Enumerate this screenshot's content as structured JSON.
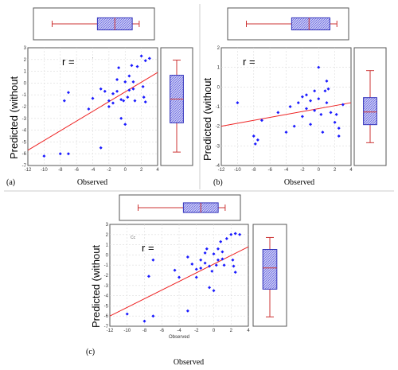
{
  "chart_data": [
    {
      "panel_label": "(a)",
      "type": "scatter",
      "title": "",
      "xlabel": "Observed",
      "ylabel": "Predicted (without",
      "r_label": "r =",
      "annotation": "ʼ",
      "xlim": [
        -12,
        4
      ],
      "ylim": [
        -7,
        3
      ],
      "x_ticks": [
        -12,
        -10,
        -8,
        -6,
        -4,
        -2,
        0,
        2,
        4
      ],
      "y_ticks": [
        3,
        2,
        1,
        0,
        -1,
        -2,
        -3,
        -4,
        -5,
        -6,
        -7
      ],
      "grid": true,
      "points": {
        "x": [
          -10,
          -8,
          -7.5,
          -7,
          -7,
          -4.5,
          -4,
          -3,
          -3,
          -2.5,
          -2,
          -2,
          -1.5,
          -1.5,
          -1,
          -1,
          -0.8,
          -0.5,
          -0.5,
          -0.2,
          0,
          0,
          0.3,
          0.5,
          0.5,
          0.8,
          1,
          1,
          1.2,
          1.5,
          2,
          2.2,
          2.3,
          2.5,
          2.5,
          3
        ],
        "y": [
          -6.2,
          -6,
          -1.5,
          -0.8,
          -6,
          -2.2,
          -1.3,
          -0.5,
          -5.5,
          -0.7,
          -1.5,
          -2,
          -0.9,
          -1.7,
          0.3,
          -0.7,
          1.3,
          -1.4,
          -3,
          -1.5,
          0.1,
          -3.5,
          -1.2,
          0.6,
          -0.6,
          1.5,
          0.1,
          -0.5,
          -1.5,
          1.4,
          2.3,
          -0.3,
          -1.2,
          1.9,
          -1.6,
          2.1
        ]
      },
      "fit_line": {
        "x": [
          -12,
          4
        ],
        "y": [
          -5.7,
          0.9
        ]
      },
      "boxplot_x": {
        "min": -10,
        "q1": -3.5,
        "median": -1,
        "q3": 1.5,
        "max": 2.5
      },
      "boxplot_y": {
        "min": -6.2,
        "q1": -3.5,
        "median": -1.3,
        "q3": 0.9,
        "max": 2.3
      }
    },
    {
      "panel_label": "(b)",
      "type": "scatter",
      "title": "",
      "xlabel": "Observed",
      "ylabel": "Predicted (without",
      "r_label": "r =",
      "xlim": [
        -12,
        4
      ],
      "ylim": [
        -4,
        2
      ],
      "x_ticks": [
        -12,
        -10,
        -8,
        -6,
        -4,
        -2,
        0,
        2,
        4
      ],
      "y_ticks": [
        2,
        1,
        0,
        -1,
        -2,
        -3,
        -4
      ],
      "grid": true,
      "points": {
        "x": [
          -10,
          -8,
          -7.8,
          -7.5,
          -7,
          -5,
          -4,
          -3.5,
          -3,
          -2.5,
          -2,
          -2,
          -1.5,
          -1.5,
          -1,
          -1,
          -0.5,
          -0.5,
          0,
          0,
          0.3,
          0.5,
          0.8,
          1,
          1,
          1.2,
          1.5,
          2,
          2.2,
          2.5,
          2.5,
          3
        ],
        "y": [
          -0.8,
          -2.5,
          -2.9,
          -2.7,
          -1.7,
          -1.3,
          -2.3,
          -1.0,
          -2.0,
          -0.8,
          -0.5,
          -1.5,
          -1.1,
          -0.4,
          -0.7,
          -1.9,
          -1.2,
          -0.2,
          1.0,
          -0.6,
          -1.4,
          -2.3,
          -0.2,
          0.3,
          -0.8,
          -0.1,
          -1.3,
          -1.8,
          -1.4,
          -2.1,
          -2.5,
          -0.9
        ]
      },
      "fit_line": {
        "x": [
          -12,
          4
        ],
        "y": [
          -2.0,
          -0.8
        ]
      },
      "boxplot_x": {
        "min": -10,
        "q1": -3.5,
        "median": -1,
        "q3": 2,
        "max": 3
      },
      "boxplot_y": {
        "min": -3.0,
        "q1": -2.0,
        "median": -1.3,
        "q3": -0.5,
        "max": 1.0
      }
    },
    {
      "panel_label": "(c)",
      "type": "scatter",
      "title": "",
      "xlabel": "Observed",
      "xlabel_small": "Observed",
      "ylabel": "Predicted (without",
      "r_label": "r =",
      "annotation": "Cc",
      "xlim": [
        -12,
        4
      ],
      "ylim": [
        -7,
        3
      ],
      "x_ticks": [
        -12,
        -10,
        -8,
        -6,
        -4,
        -2,
        0,
        2,
        4
      ],
      "y_ticks": [
        3,
        2,
        1,
        0,
        -1,
        -2,
        -3,
        -4,
        -5,
        -6,
        -7
      ],
      "grid": true,
      "points": {
        "x": [
          -10,
          -8,
          -7.5,
          -7,
          -7,
          -4.5,
          -4,
          -3,
          -3,
          -2.5,
          -2,
          -2,
          -1.5,
          -1.5,
          -1,
          -1,
          -0.8,
          -0.5,
          -0.5,
          -0.2,
          0,
          0,
          0.3,
          0.5,
          0.5,
          0.8,
          1,
          1,
          1.2,
          1.5,
          2,
          2.2,
          2.3,
          2.5,
          2.5,
          3
        ],
        "y": [
          -5.8,
          -6.5,
          -2.1,
          -0.5,
          -6.0,
          -1.5,
          -2.2,
          -0.2,
          -5.5,
          -0.9,
          -1.4,
          -2.2,
          -0.5,
          -1.3,
          0.2,
          -0.8,
          0.6,
          -1.1,
          -3.2,
          -1.6,
          0.1,
          -3.5,
          -1.0,
          0.6,
          -0.5,
          1.3,
          0.3,
          -0.4,
          -1.0,
          1.6,
          2.0,
          -0.5,
          -1.1,
          2.1,
          -1.7,
          2.0
        ]
      },
      "fit_line": {
        "x": [
          -12,
          4
        ],
        "y": [
          -6.0,
          0.8
        ]
      },
      "boxplot_x": {
        "min": -10,
        "q1": -3.5,
        "median": -1,
        "q3": 1.5,
        "max": 2.5
      },
      "boxplot_y": {
        "min": -6.5,
        "q1": -3.5,
        "median": -1.2,
        "q3": 0.8,
        "max": 2.1
      }
    }
  ]
}
